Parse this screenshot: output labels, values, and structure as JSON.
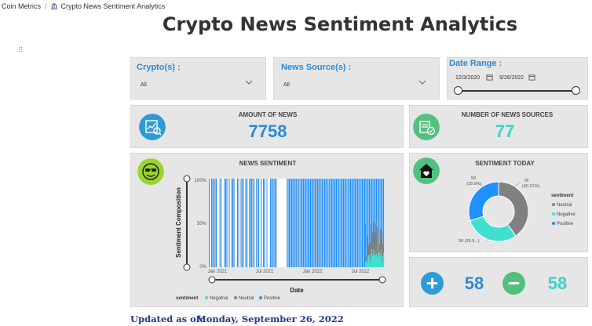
{
  "breadcrumb": {
    "root": "Coin Metrics",
    "separator": "/",
    "current": "Crypto News Sentiment Analytics"
  },
  "page_title": "Crypto News Sentiment Analytics",
  "filters": {
    "crypto": {
      "label": "Crypto(s) :",
      "value": "All"
    },
    "news_source": {
      "label": "News Source(s) :",
      "value": "All"
    },
    "date_range": {
      "label": "Date Range :",
      "start": "12/3/2020",
      "end": "9/26/2022"
    }
  },
  "kpis": {
    "amount_of_news": {
      "label": "AMOUNT OF NEWS",
      "value": "7758",
      "icon": "analytics-icon"
    },
    "number_of_sources": {
      "label": "NUMBER OF NEWS SOURCES",
      "value": "77",
      "icon": "news-sources-icon"
    }
  },
  "news_sentiment": {
    "title": "NEWS SENTIMENT",
    "icon": "sunglasses-face-icon",
    "chart_data": {
      "type": "area",
      "stacked": "percent",
      "ylabel": "Sentiment Composition",
      "xlabel": "Date",
      "y_ticks": [
        "100%",
        "50%",
        "0%"
      ],
      "x_ticks": [
        "Jan 2021",
        "Jul 2021",
        "Jan 2022",
        "Jul 2022"
      ],
      "legend": {
        "title": "sentiment",
        "placement": "bottom",
        "entries": [
          "Negative",
          "Neutral",
          "Positive"
        ]
      },
      "series_colors": {
        "Negative": "#40e0d0",
        "Neutral": "#808080",
        "Positive": "#1e90ff"
      }
    }
  },
  "sentiment_today": {
    "title": "SENTIMENT TODAY",
    "icon": "home-heart-icon",
    "chart_data": {
      "type": "pie",
      "donut": true,
      "legend": {
        "title": "sentiment",
        "placement": "right",
        "entries": [
          "Neutral",
          "Negative",
          "Positive"
        ]
      },
      "slices": [
        {
          "name": "Neutral",
          "value": 78,
          "label_value": "78",
          "label_pct": "(40.21%)",
          "color": "#808080"
        },
        {
          "name": "Negative",
          "value": 58,
          "label_value": "58 (29.9...)",
          "label_pct": "",
          "color": "#40e0d0"
        },
        {
          "name": "Positive",
          "value": 58,
          "label_value": "58",
          "label_pct": "(29.9%)",
          "color": "#1e90ff"
        }
      ]
    }
  },
  "today_counts": {
    "positive": {
      "value": "58",
      "icon": "plus-circle-icon",
      "color": "#1e90ff",
      "icon_color": "#2d9bd6"
    },
    "negative": {
      "value": "58",
      "icon": "minus-circle-icon",
      "color": "#40e0d0",
      "icon_color": "#52c07e"
    }
  },
  "footer": {
    "label": "Updated as of:",
    "date": "Monday, September 26, 2022"
  }
}
